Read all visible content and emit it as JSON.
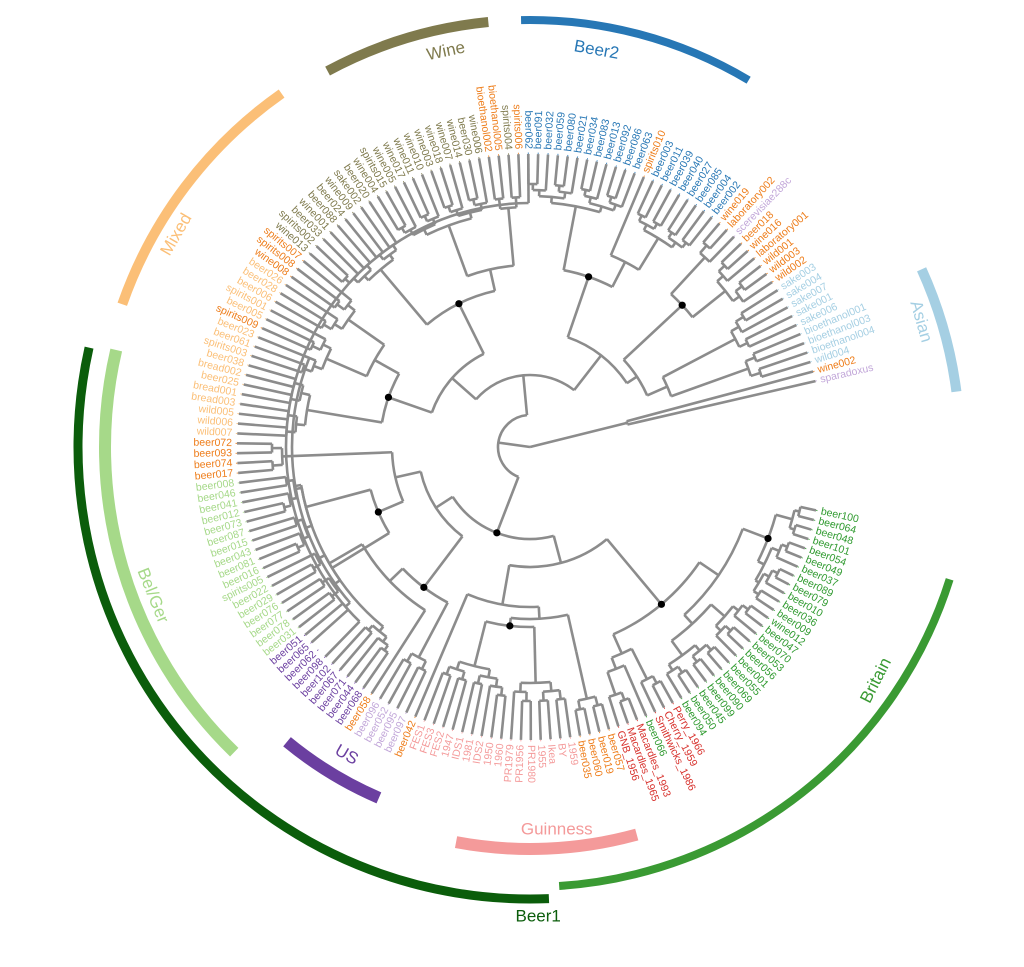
{
  "groups": [
    {
      "name": "Beer1",
      "color": "#0b5d0b"
    },
    {
      "name": "Britain",
      "color": "#3a9a33"
    },
    {
      "name": "Guinness",
      "color": "#f49a9a"
    },
    {
      "name": "US",
      "color": "#6b3fa0"
    },
    {
      "name": "Bel/Ger",
      "color": "#a6d989"
    },
    {
      "name": "Mixed",
      "color": "#fbbf77"
    },
    {
      "name": "Wine",
      "color": "#7f7a4d"
    },
    {
      "name": "Beer2",
      "color": "#2777b5"
    },
    {
      "name": "Asian",
      "color": "#a5cfe3"
    }
  ],
  "leaf_colors": {
    "britain": "#2f9a2f",
    "red": "#d7302b",
    "guinness": "#f49a9a",
    "orange": "#ee7d1a",
    "lavender": "#c2a7d9",
    "purple": "#6b3fa0",
    "belger": "#a6d989",
    "mixed": "#fbbf77",
    "wine": "#7f7a4d",
    "beer2": "#2777b5",
    "asian": "#a5cfe3"
  },
  "leaves": [
    {
      "label": "beer100",
      "c": "britain"
    },
    {
      "label": "beer064",
      "c": "britain"
    },
    {
      "label": "beer048",
      "c": "britain"
    },
    {
      "label": "beer101",
      "c": "britain"
    },
    {
      "label": "beer054",
      "c": "britain"
    },
    {
      "label": "beer049",
      "c": "britain"
    },
    {
      "label": "beer037",
      "c": "britain"
    },
    {
      "label": "beer089",
      "c": "britain"
    },
    {
      "label": "beer079",
      "c": "britain"
    },
    {
      "label": "beer010",
      "c": "britain"
    },
    {
      "label": "beer036",
      "c": "britain"
    },
    {
      "label": "beer009",
      "c": "britain"
    },
    {
      "label": "wine012",
      "c": "britain"
    },
    {
      "label": "beer047",
      "c": "britain"
    },
    {
      "label": "beer070",
      "c": "britain"
    },
    {
      "label": "beer053",
      "c": "britain"
    },
    {
      "label": "beer056",
      "c": "britain"
    },
    {
      "label": "beer001",
      "c": "britain"
    },
    {
      "label": "beer055",
      "c": "britain"
    },
    {
      "label": "beer069",
      "c": "britain"
    },
    {
      "label": "beer090",
      "c": "britain"
    },
    {
      "label": "beer099",
      "c": "britain"
    },
    {
      "label": "beer045",
      "c": "britain"
    },
    {
      "label": "beer050",
      "c": "britain"
    },
    {
      "label": "beer094",
      "c": "britain"
    },
    {
      "label": "Perry_1966",
      "c": "red"
    },
    {
      "label": "Cherry_1959",
      "c": "red"
    },
    {
      "label": "Smithwicks_1986",
      "c": "red"
    },
    {
      "label": "beer066",
      "c": "britain"
    },
    {
      "label": "Macardles_1993",
      "c": "red"
    },
    {
      "label": "Macardles_1965",
      "c": "red"
    },
    {
      "label": "GNB_1956",
      "c": "red"
    },
    {
      "label": "beer057",
      "c": "orange"
    },
    {
      "label": "beer019",
      "c": "orange"
    },
    {
      "label": "beer060",
      "c": "orange"
    },
    {
      "label": "beer035",
      "c": "orange"
    },
    {
      "label": "1959",
      "c": "guinness"
    },
    {
      "label": "BY",
      "c": "guinness"
    },
    {
      "label": "Ikea",
      "c": "guinness"
    },
    {
      "label": "1955",
      "c": "guinness"
    },
    {
      "label": "PR1980",
      "c": "guinness"
    },
    {
      "label": "PR1956",
      "c": "guinness"
    },
    {
      "label": "PR1979",
      "c": "guinness"
    },
    {
      "label": "1960",
      "c": "guinness"
    },
    {
      "label": "1950",
      "c": "guinness"
    },
    {
      "label": "IDS2",
      "c": "guinness"
    },
    {
      "label": "1981",
      "c": "guinness"
    },
    {
      "label": "IDS1",
      "c": "guinness"
    },
    {
      "label": "1947",
      "c": "guinness"
    },
    {
      "label": "FES2",
      "c": "guinness"
    },
    {
      "label": "FES3",
      "c": "guinness"
    },
    {
      "label": "FES1",
      "c": "guinness"
    },
    {
      "label": "beer042",
      "c": "orange"
    },
    {
      "label": "beer097",
      "c": "lavender"
    },
    {
      "label": "beer095",
      "c": "lavender"
    },
    {
      "label": "beer052",
      "c": "lavender"
    },
    {
      "label": "beer096",
      "c": "lavender"
    },
    {
      "label": "beer058",
      "c": "orange"
    },
    {
      "label": "beer068",
      "c": "purple"
    },
    {
      "label": "beer044",
      "c": "purple"
    },
    {
      "label": "beer071",
      "c": "purple"
    },
    {
      "label": "beer067",
      "c": "purple"
    },
    {
      "label": "beer102",
      "c": "purple"
    },
    {
      "label": "beer098",
      "c": "purple"
    },
    {
      "label": "beer062",
      "c": "purple"
    },
    {
      "label": "beer065",
      "c": "purple"
    },
    {
      "label": "beer051",
      "c": "purple"
    },
    {
      "label": "beer031",
      "c": "belger"
    },
    {
      "label": "beer078",
      "c": "belger"
    },
    {
      "label": "beer077",
      "c": "belger"
    },
    {
      "label": "beer076",
      "c": "belger"
    },
    {
      "label": "beer029",
      "c": "belger"
    },
    {
      "label": "beer022",
      "c": "belger"
    },
    {
      "label": "spirits005",
      "c": "belger"
    },
    {
      "label": "beer016",
      "c": "belger"
    },
    {
      "label": "beer081",
      "c": "belger"
    },
    {
      "label": "beer043",
      "c": "belger"
    },
    {
      "label": "beer015",
      "c": "belger"
    },
    {
      "label": "beer087",
      "c": "belger"
    },
    {
      "label": "beer073",
      "c": "belger"
    },
    {
      "label": "beer012",
      "c": "belger"
    },
    {
      "label": "beer041",
      "c": "belger"
    },
    {
      "label": "beer046",
      "c": "belger"
    },
    {
      "label": "beer008",
      "c": "belger"
    },
    {
      "label": "beer017",
      "c": "orange"
    },
    {
      "label": "beer074",
      "c": "orange"
    },
    {
      "label": "beer093",
      "c": "orange"
    },
    {
      "label": "beer072",
      "c": "orange"
    },
    {
      "label": "wild007",
      "c": "mixed"
    },
    {
      "label": "wild006",
      "c": "mixed"
    },
    {
      "label": "wild005",
      "c": "mixed"
    },
    {
      "label": "bread003",
      "c": "mixed"
    },
    {
      "label": "bread001",
      "c": "mixed"
    },
    {
      "label": "beer025",
      "c": "mixed"
    },
    {
      "label": "bread002",
      "c": "mixed"
    },
    {
      "label": "beer038",
      "c": "mixed"
    },
    {
      "label": "spirits003",
      "c": "mixed"
    },
    {
      "label": "beer061",
      "c": "mixed"
    },
    {
      "label": "beer023",
      "c": "mixed"
    },
    {
      "label": "spirits009",
      "c": "orange"
    },
    {
      "label": "beer005",
      "c": "mixed"
    },
    {
      "label": "spirits001",
      "c": "mixed"
    },
    {
      "label": "beer006",
      "c": "mixed"
    },
    {
      "label": "beer028",
      "c": "mixed"
    },
    {
      "label": "beer026",
      "c": "mixed"
    },
    {
      "label": "wine008",
      "c": "orange"
    },
    {
      "label": "spirits008",
      "c": "orange"
    },
    {
      "label": "spirits007",
      "c": "orange"
    },
    {
      "label": "wine013",
      "c": "wine"
    },
    {
      "label": "spirits002",
      "c": "wine"
    },
    {
      "label": "beer033",
      "c": "wine"
    },
    {
      "label": "wine001",
      "c": "wine"
    },
    {
      "label": "beer088",
      "c": "wine"
    },
    {
      "label": "beer024",
      "c": "wine"
    },
    {
      "label": "wine009",
      "c": "wine"
    },
    {
      "label": "sake002",
      "c": "wine"
    },
    {
      "label": "beer020",
      "c": "wine"
    },
    {
      "label": "wine004",
      "c": "wine"
    },
    {
      "label": "spirits015",
      "c": "wine"
    },
    {
      "label": "wine005",
      "c": "wine"
    },
    {
      "label": "wine017",
      "c": "wine"
    },
    {
      "label": "wine011",
      "c": "wine"
    },
    {
      "label": "wine010",
      "c": "wine"
    },
    {
      "label": "wine003",
      "c": "wine"
    },
    {
      "label": "wine018",
      "c": "wine"
    },
    {
      "label": "wine007",
      "c": "wine"
    },
    {
      "label": "wine014",
      "c": "wine"
    },
    {
      "label": "beer030",
      "c": "wine"
    },
    {
      "label": "wine006",
      "c": "wine"
    },
    {
      "label": "bioethanol002",
      "c": "orange"
    },
    {
      "label": "bioethanol005",
      "c": "orange"
    },
    {
      "label": "spirits004",
      "c": "wine"
    },
    {
      "label": "spirits006",
      "c": "orange"
    },
    {
      "label": "beer062",
      "c": "beer2"
    },
    {
      "label": "beer091",
      "c": "beer2"
    },
    {
      "label": "beer032",
      "c": "beer2"
    },
    {
      "label": "beer059",
      "c": "beer2"
    },
    {
      "label": "beer080",
      "c": "beer2"
    },
    {
      "label": "beer021",
      "c": "beer2"
    },
    {
      "label": "beer034",
      "c": "beer2"
    },
    {
      "label": "beer083",
      "c": "beer2"
    },
    {
      "label": "beer013",
      "c": "beer2"
    },
    {
      "label": "beer092",
      "c": "beer2"
    },
    {
      "label": "beer086",
      "c": "beer2"
    },
    {
      "label": "beer063",
      "c": "beer2"
    },
    {
      "label": "spirits010",
      "c": "orange"
    },
    {
      "label": "beer003",
      "c": "beer2"
    },
    {
      "label": "beer011",
      "c": "beer2"
    },
    {
      "label": "beer039",
      "c": "beer2"
    },
    {
      "label": "beer040",
      "c": "beer2"
    },
    {
      "label": "beer027",
      "c": "beer2"
    },
    {
      "label": "beer085",
      "c": "beer2"
    },
    {
      "label": "beer004",
      "c": "beer2"
    },
    {
      "label": "beer002",
      "c": "beer2"
    },
    {
      "label": "wine019",
      "c": "orange"
    },
    {
      "label": "laboratory002",
      "c": "orange"
    },
    {
      "label": "scerevisiae288c",
      "c": "lavender"
    },
    {
      "label": "beer018",
      "c": "orange"
    },
    {
      "label": "wine016",
      "c": "orange"
    },
    {
      "label": "laboratory001",
      "c": "orange"
    },
    {
      "label": "wild001",
      "c": "orange"
    },
    {
      "label": "wild003",
      "c": "orange"
    },
    {
      "label": "wild002",
      "c": "orange"
    },
    {
      "label": "sake003",
      "c": "asian"
    },
    {
      "label": "sake004",
      "c": "asian"
    },
    {
      "label": "sake007",
      "c": "asian"
    },
    {
      "label": "sake001",
      "c": "asian"
    },
    {
      "label": "sake006",
      "c": "asian"
    },
    {
      "label": "bioethanol001",
      "c": "asian"
    },
    {
      "label": "bioethanol003",
      "c": "asian"
    },
    {
      "label": "bioethanol004",
      "c": "asian"
    },
    {
      "label": "wild004",
      "c": "asian"
    },
    {
      "label": "wine002",
      "c": "orange"
    },
    {
      "label": "sparadoxus",
      "c": "lavender"
    }
  ]
}
